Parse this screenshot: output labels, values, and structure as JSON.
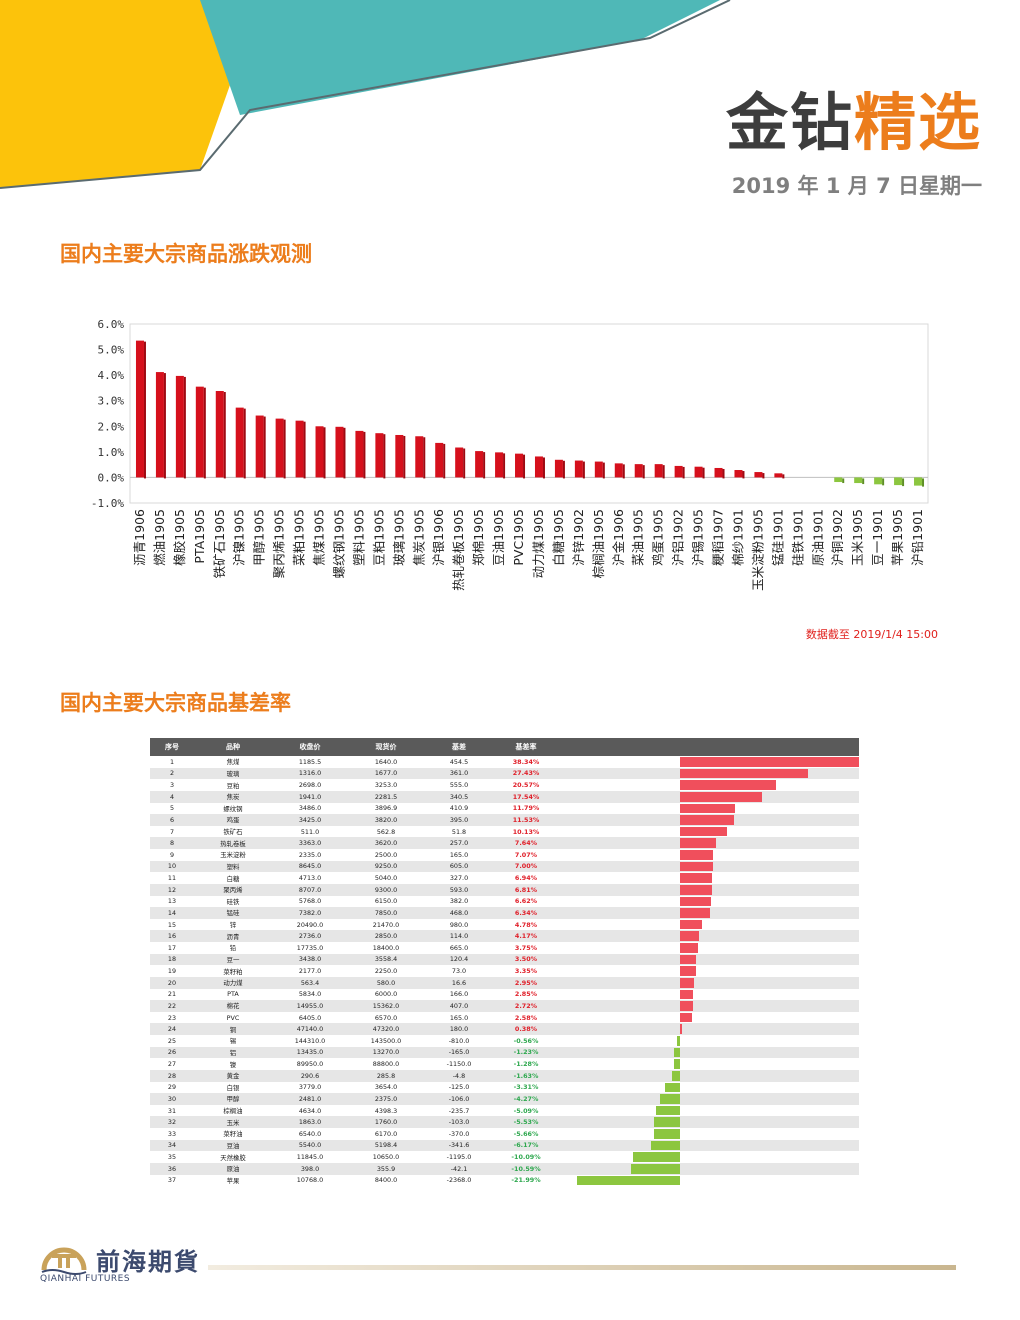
{
  "header": {
    "brand_part1": "金钻",
    "brand_part2": "精选",
    "date": "2019 年 1 月 7 日星期一"
  },
  "section1": {
    "title": "国内主要大宗商品涨跌观测"
  },
  "section2": {
    "title": "国内主要大宗商品基差率"
  },
  "chart_note": "数据截至 2019/1/4 15:00",
  "colors": {
    "up": "#d6101c",
    "down": "#8cc63f",
    "accent": "#ec7d1c",
    "teal": "#4fb8b7",
    "yellow": "#fcc30b"
  },
  "chart_data": {
    "type": "bar",
    "title": "",
    "xlabel": "",
    "ylabel": "",
    "ylim": [
      -1.0,
      6.0
    ],
    "yticks": [
      "6.0%",
      "5.0%",
      "4.0%",
      "3.0%",
      "2.0%",
      "1.0%",
      "0.0%",
      "-1.0%"
    ],
    "grid": false,
    "categories": [
      "沥青1906",
      "燃油1905",
      "橡胶1905",
      "PTA1905",
      "铁矿石1905",
      "沪镍1905",
      "甲醇1905",
      "聚丙烯1905",
      "菜粕1905",
      "焦煤1905",
      "螺纹钢1905",
      "塑料1905",
      "豆粕1905",
      "玻璃1905",
      "焦炭1905",
      "沪银1906",
      "热轧卷板1905",
      "郑棉1905",
      "豆油1905",
      "PVC1905",
      "动力煤1905",
      "白糖1905",
      "沪锌1902",
      "棕榈油1905",
      "沪金1906",
      "菜油1905",
      "鸡蛋1905",
      "沪铝1902",
      "沪锡1905",
      "粳稻1907",
      "棉纱1901",
      "玉米淀粉1905",
      "锰硅1901",
      "硅铁1901",
      "原油1901",
      "沪铜1902",
      "玉米1905",
      "豆一1901",
      "苹果1905",
      "沪铅1901"
    ],
    "values": [
      5.35,
      4.12,
      3.97,
      3.55,
      3.38,
      2.73,
      2.42,
      2.3,
      2.22,
      2.0,
      1.98,
      1.82,
      1.73,
      1.66,
      1.61,
      1.35,
      1.17,
      1.03,
      0.98,
      0.93,
      0.82,
      0.69,
      0.66,
      0.62,
      0.55,
      0.52,
      0.52,
      0.45,
      0.42,
      0.37,
      0.29,
      0.21,
      0.16,
      0.0,
      0.0,
      -0.18,
      -0.22,
      -0.27,
      -0.3,
      -0.32
    ]
  },
  "basis_table": {
    "headers": [
      "序号",
      "品种",
      "收盘价",
      "现货价",
      "基差",
      "基差率"
    ],
    "max_abs_rate": 38.34,
    "rows": [
      {
        "idx": "1",
        "name": "焦煤",
        "fut": "1185.5",
        "spot": "1640.0",
        "basis": "454.5",
        "rate_text": "38.34%",
        "rate": 38.34
      },
      {
        "idx": "2",
        "name": "玻璃",
        "fut": "1316.0",
        "spot": "1677.0",
        "basis": "361.0",
        "rate_text": "27.43%",
        "rate": 27.43
      },
      {
        "idx": "3",
        "name": "豆粕",
        "fut": "2698.0",
        "spot": "3253.0",
        "basis": "555.0",
        "rate_text": "20.57%",
        "rate": 20.57
      },
      {
        "idx": "4",
        "name": "焦炭",
        "fut": "1941.0",
        "spot": "2281.5",
        "basis": "340.5",
        "rate_text": "17.54%",
        "rate": 17.54
      },
      {
        "idx": "5",
        "name": "螺纹钢",
        "fut": "3486.0",
        "spot": "3896.9",
        "basis": "410.9",
        "rate_text": "11.79%",
        "rate": 11.79
      },
      {
        "idx": "6",
        "name": "鸡蛋",
        "fut": "3425.0",
        "spot": "3820.0",
        "basis": "395.0",
        "rate_text": "11.53%",
        "rate": 11.53
      },
      {
        "idx": "7",
        "name": "铁矿石",
        "fut": "511.0",
        "spot": "562.8",
        "basis": "51.8",
        "rate_text": "10.13%",
        "rate": 10.13
      },
      {
        "idx": "8",
        "name": "热轧卷板",
        "fut": "3363.0",
        "spot": "3620.0",
        "basis": "257.0",
        "rate_text": "7.64%",
        "rate": 7.64
      },
      {
        "idx": "9",
        "name": "玉米淀粉",
        "fut": "2335.0",
        "spot": "2500.0",
        "basis": "165.0",
        "rate_text": "7.07%",
        "rate": 7.07
      },
      {
        "idx": "10",
        "name": "塑料",
        "fut": "8645.0",
        "spot": "9250.0",
        "basis": "605.0",
        "rate_text": "7.00%",
        "rate": 7.0
      },
      {
        "idx": "11",
        "name": "白糖",
        "fut": "4713.0",
        "spot": "5040.0",
        "basis": "327.0",
        "rate_text": "6.94%",
        "rate": 6.94
      },
      {
        "idx": "12",
        "name": "聚丙烯",
        "fut": "8707.0",
        "spot": "9300.0",
        "basis": "593.0",
        "rate_text": "6.81%",
        "rate": 6.81
      },
      {
        "idx": "13",
        "name": "硅铁",
        "fut": "5768.0",
        "spot": "6150.0",
        "basis": "382.0",
        "rate_text": "6.62%",
        "rate": 6.62
      },
      {
        "idx": "14",
        "name": "锰硅",
        "fut": "7382.0",
        "spot": "7850.0",
        "basis": "468.0",
        "rate_text": "6.34%",
        "rate": 6.34
      },
      {
        "idx": "15",
        "name": "锌",
        "fut": "20490.0",
        "spot": "21470.0",
        "basis": "980.0",
        "rate_text": "4.78%",
        "rate": 4.78
      },
      {
        "idx": "16",
        "name": "沥青",
        "fut": "2736.0",
        "spot": "2850.0",
        "basis": "114.0",
        "rate_text": "4.17%",
        "rate": 4.17
      },
      {
        "idx": "17",
        "name": "铅",
        "fut": "17735.0",
        "spot": "18400.0",
        "basis": "665.0",
        "rate_text": "3.75%",
        "rate": 3.75
      },
      {
        "idx": "18",
        "name": "豆一",
        "fut": "3438.0",
        "spot": "3558.4",
        "basis": "120.4",
        "rate_text": "3.50%",
        "rate": 3.5
      },
      {
        "idx": "19",
        "name": "菜籽粕",
        "fut": "2177.0",
        "spot": "2250.0",
        "basis": "73.0",
        "rate_text": "3.35%",
        "rate": 3.35
      },
      {
        "idx": "20",
        "name": "动力煤",
        "fut": "563.4",
        "spot": "580.0",
        "basis": "16.6",
        "rate_text": "2.95%",
        "rate": 2.95
      },
      {
        "idx": "21",
        "name": "PTA",
        "fut": "5834.0",
        "spot": "6000.0",
        "basis": "166.0",
        "rate_text": "2.85%",
        "rate": 2.85
      },
      {
        "idx": "22",
        "name": "棉花",
        "fut": "14955.0",
        "spot": "15362.0",
        "basis": "407.0",
        "rate_text": "2.72%",
        "rate": 2.72
      },
      {
        "idx": "23",
        "name": "PVC",
        "fut": "6405.0",
        "spot": "6570.0",
        "basis": "165.0",
        "rate_text": "2.58%",
        "rate": 2.58
      },
      {
        "idx": "24",
        "name": "铜",
        "fut": "47140.0",
        "spot": "47320.0",
        "basis": "180.0",
        "rate_text": "0.38%",
        "rate": 0.38
      },
      {
        "idx": "25",
        "name": "锡",
        "fut": "144310.0",
        "spot": "143500.0",
        "basis": "-810.0",
        "rate_text": "-0.56%",
        "rate": -0.56
      },
      {
        "idx": "26",
        "name": "铝",
        "fut": "13435.0",
        "spot": "13270.0",
        "basis": "-165.0",
        "rate_text": "-1.23%",
        "rate": -1.23
      },
      {
        "idx": "27",
        "name": "镍",
        "fut": "89950.0",
        "spot": "88800.0",
        "basis": "-1150.0",
        "rate_text": "-1.28%",
        "rate": -1.28
      },
      {
        "idx": "28",
        "name": "黄金",
        "fut": "290.6",
        "spot": "285.8",
        "basis": "-4.8",
        "rate_text": "-1.63%",
        "rate": -1.63
      },
      {
        "idx": "29",
        "name": "白银",
        "fut": "3779.0",
        "spot": "3654.0",
        "basis": "-125.0",
        "rate_text": "-3.31%",
        "rate": -3.31
      },
      {
        "idx": "30",
        "name": "甲醇",
        "fut": "2481.0",
        "spot": "2375.0",
        "basis": "-106.0",
        "rate_text": "-4.27%",
        "rate": -4.27
      },
      {
        "idx": "31",
        "name": "棕榈油",
        "fut": "4634.0",
        "spot": "4398.3",
        "basis": "-235.7",
        "rate_text": "-5.09%",
        "rate": -5.09
      },
      {
        "idx": "32",
        "name": "玉米",
        "fut": "1863.0",
        "spot": "1760.0",
        "basis": "-103.0",
        "rate_text": "-5.53%",
        "rate": -5.53
      },
      {
        "idx": "33",
        "name": "菜籽油",
        "fut": "6540.0",
        "spot": "6170.0",
        "basis": "-370.0",
        "rate_text": "-5.66%",
        "rate": -5.66
      },
      {
        "idx": "34",
        "name": "豆油",
        "fut": "5540.0",
        "spot": "5198.4",
        "basis": "-341.6",
        "rate_text": "-6.17%",
        "rate": -6.17
      },
      {
        "idx": "35",
        "name": "天然橡胶",
        "fut": "11845.0",
        "spot": "10650.0",
        "basis": "-1195.0",
        "rate_text": "-10.09%",
        "rate": -10.09
      },
      {
        "idx": "36",
        "name": "原油",
        "fut": "398.0",
        "spot": "355.9",
        "basis": "-42.1",
        "rate_text": "-10.59%",
        "rate": -10.59
      },
      {
        "idx": "37",
        "name": "苹果",
        "fut": "10768.0",
        "spot": "8400.0",
        "basis": "-2368.0",
        "rate_text": "-21.99%",
        "rate": -21.99
      }
    ]
  },
  "footer": {
    "logo_cn": "前海期貨",
    "logo_en": "QIANHAI FUTURES"
  }
}
